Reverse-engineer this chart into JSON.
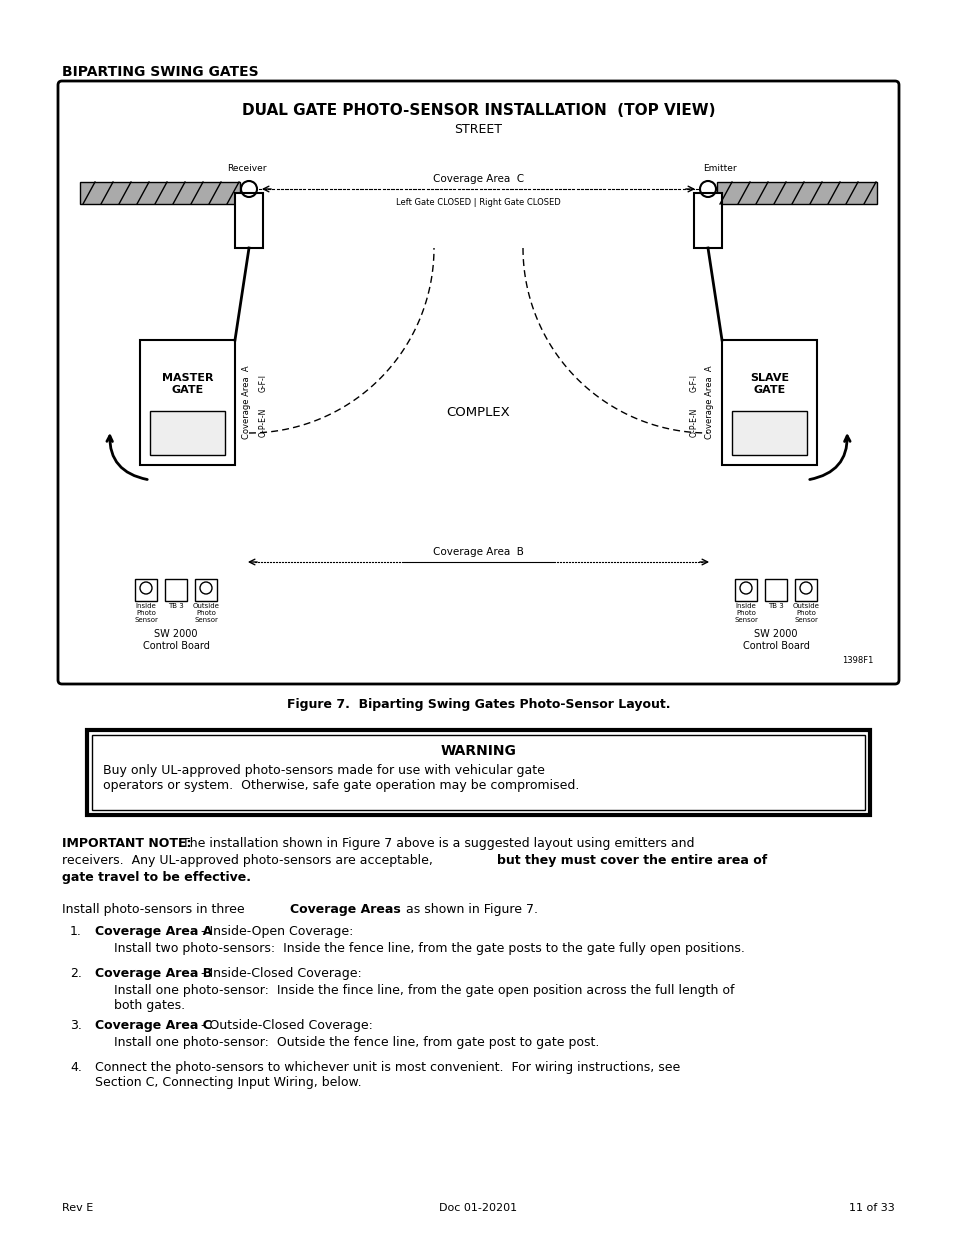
{
  "page_bg": "#ffffff",
  "title_heading": "BIPARTING SWING GATES",
  "diagram_title_line1": "DUAL GATE PHOTO-SENSOR INSTALLATION  (TOP VIEW)",
  "diagram_title_line2": "STREET",
  "figure_caption": "Figure 7.  Biparting Swing Gates Photo-Sensor Layout.",
  "warning_title": "WARNING",
  "warning_text": "Buy only UL-approved photo-sensors made for use with vehicular gate\noperators or system.  Otherwise, safe gate operation may be compromised.",
  "important_note_bold": "IMPORTANT NOTE:",
  "items": [
    {
      "num": "1.",
      "bold": "Coverage Area A",
      "text1": " - Inside-Open Coverage:",
      "text2": "Install two photo-sensors:  Inside the fence line, from the gate posts to the gate fully open positions."
    },
    {
      "num": "2.",
      "bold": "Coverage Area B",
      "text1": " - Inside-Closed Coverage:",
      "text2": "Install one photo-sensor:  Inside the fince line, from the gate open position across the full length of\nboth gates."
    },
    {
      "num": "3.",
      "bold": "Coverage Area C",
      "text1": " - Outside-Closed Coverage:",
      "text2": "Install one photo-sensor:  Outside the fence line, from gate post to gate post."
    },
    {
      "num": "4.",
      "bold": "",
      "text1": "Connect the photo-sensors to whichever unit is most convenient.  For wiring instructions, see\nSection C, Connecting Input Wiring, below.",
      "text2": ""
    }
  ],
  "footer_left": "Rev E",
  "footer_center": "Doc 01-20201",
  "footer_right": "11 of 33"
}
